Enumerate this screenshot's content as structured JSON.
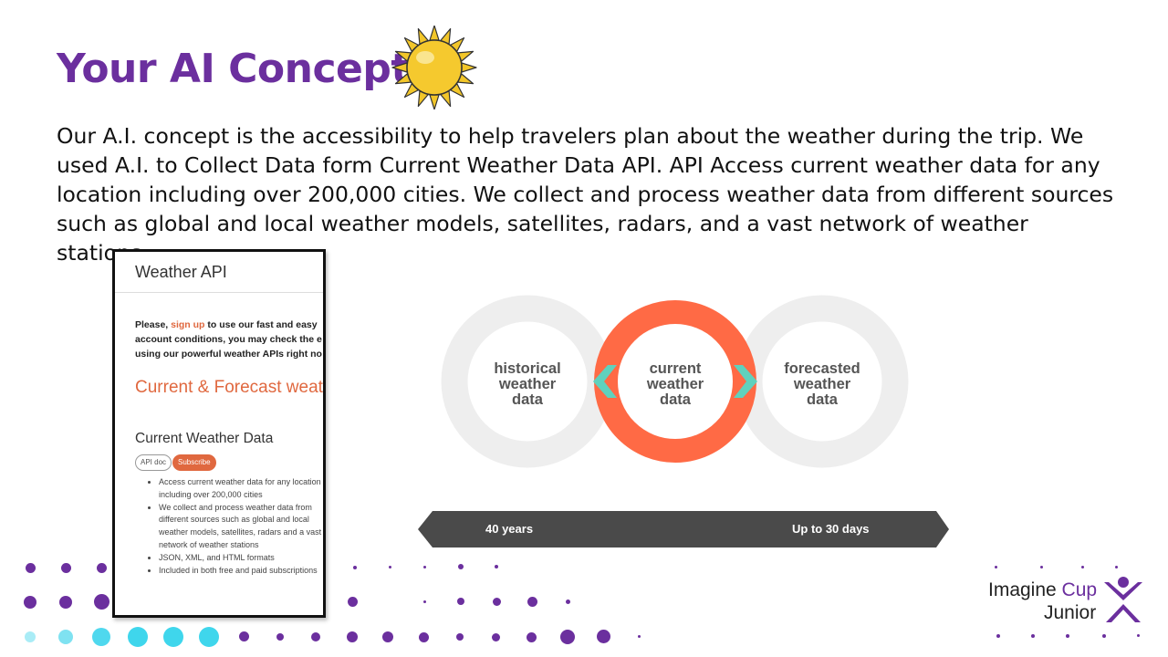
{
  "slide": {
    "title": "Your AI Concept",
    "body": "Our A.I. concept is the accessibility to help travelers plan about the weather during the trip. We used A.I. to Collect Data form Current Weather Data API. API Access current weather data for any location including over 200,000 cities. We collect and process weather data from different sources such as global and local weather models, satellites, radars, and a vast network of weather stations."
  },
  "screenshot": {
    "app_title": "Weather API",
    "intro_prefix": "Please, ",
    "signup_link": "sign up",
    "intro_line1_suffix": " to use our fast and easy",
    "intro_line2": "account conditions, you may check the e",
    "intro_line3": "using our powerful weather APIs right no",
    "section_heading": "Current & Forecast weat",
    "subheading": "Current Weather Data",
    "api_doc_label": "API doc",
    "subscribe_label": "Subscribe",
    "bullets": [
      "Access current weather data for any location including over 200,000 cities",
      "We collect and process weather data from different sources such as global and local weather models, satellites, radars and a vast network of weather stations",
      "JSON, XML, and HTML formats",
      "Included in both free and paid subscriptions"
    ]
  },
  "diagram": {
    "left_label": [
      "historical",
      "weather",
      "data"
    ],
    "center_label": [
      "current",
      "weather",
      "data"
    ],
    "right_label": [
      "forecasted",
      "weather",
      "data"
    ],
    "band_left": "40 years",
    "band_right": "Up to 30 days",
    "colors": {
      "ring_gray": "#eeeeee",
      "ring_center": "#ff6a45",
      "arrow": "#5fd1bd",
      "band": "#4a4a4a"
    }
  },
  "branding": {
    "logo_line1_a": "Imagine ",
    "logo_line1_b": "Cup",
    "logo_line2": "Junior",
    "colors": {
      "purple": "#6b2f9e",
      "cyan": "#3fd6ec"
    }
  }
}
